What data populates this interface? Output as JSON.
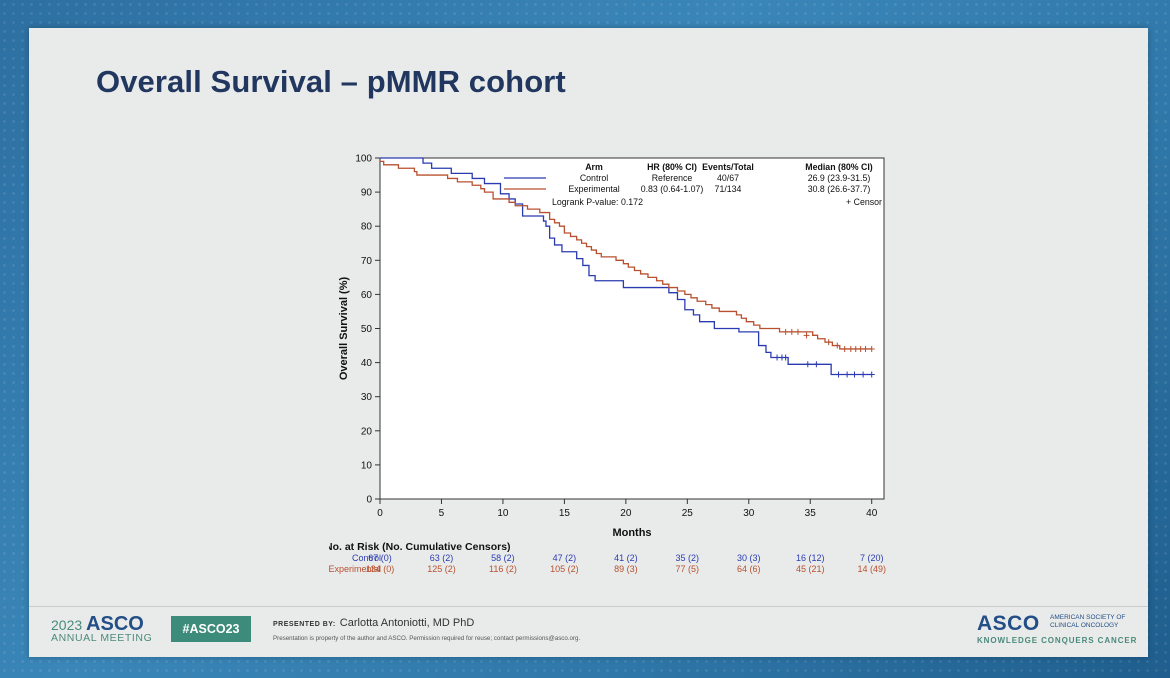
{
  "slide": {
    "title": "Overall Survival – pMMR cohort"
  },
  "footer": {
    "year": "2023",
    "brand": "ASCO",
    "meeting": "ANNUAL MEETING",
    "hashtag": "#ASCO23",
    "presented_label": "PRESENTED BY:",
    "presenter": "Carlotta Antoniotti, MD PhD",
    "disclaimer": "Presentation is property of the author and ASCO. Permission required for reuse; contact permissions@asco.org.",
    "logo": "ASCO",
    "society": "AMERICAN SOCIETY OF CLINICAL ONCOLOGY",
    "tagline": "KNOWLEDGE CONQUERS CANCER"
  },
  "chart_data": {
    "type": "line",
    "title": "",
    "xlabel": "Months",
    "ylabel": "Overall Survival (%)",
    "xlim": [
      0,
      41
    ],
    "ylim": [
      0,
      100
    ],
    "x_ticks": [
      0,
      5,
      10,
      15,
      20,
      25,
      30,
      35,
      40
    ],
    "y_ticks": [
      0,
      10,
      20,
      30,
      40,
      50,
      60,
      70,
      80,
      90,
      100
    ],
    "legend": {
      "headers": {
        "arm": "Arm",
        "hr": "HR (80% CI)",
        "events": "Events/Total",
        "median": "Median (80% CI)"
      },
      "rows": [
        {
          "arm": "Control",
          "hr": "Reference",
          "events": "40/67",
          "median": "26.9 (23.9-31.5)",
          "color": "#2a3bb0"
        },
        {
          "arm": "Experimental",
          "hr": "0.83 (0.64-1.07)",
          "events": "71/134",
          "median": "30.8 (26.6-37.7)",
          "color": "#b8502f"
        }
      ],
      "pvalue": "Logrank P-value: 0.172",
      "censor": "+  Censor"
    },
    "series": [
      {
        "name": "Control",
        "color": "#2a3bb0",
        "steps": [
          [
            0,
            100
          ],
          [
            3.5,
            98.5
          ],
          [
            4.2,
            97
          ],
          [
            5.8,
            95.5
          ],
          [
            7.5,
            94
          ],
          [
            8.5,
            92.5
          ],
          [
            9.8,
            89.5
          ],
          [
            10.5,
            88
          ],
          [
            11,
            86.5
          ],
          [
            11.6,
            83
          ],
          [
            13.3,
            81.5
          ],
          [
            13.5,
            80
          ],
          [
            13.8,
            76.5
          ],
          [
            14.2,
            74.5
          ],
          [
            14.8,
            72.5
          ],
          [
            16,
            70.5
          ],
          [
            16.5,
            68.5
          ],
          [
            17,
            65.5
          ],
          [
            17.5,
            64
          ],
          [
            19.8,
            62
          ],
          [
            23.5,
            60.5
          ],
          [
            24.2,
            58.5
          ],
          [
            24.8,
            55.5
          ],
          [
            25.5,
            54
          ],
          [
            26,
            52
          ],
          [
            27.2,
            50
          ],
          [
            29.2,
            49
          ],
          [
            30.8,
            45
          ],
          [
            31.4,
            43
          ],
          [
            31.8,
            41.5
          ],
          [
            33.2,
            39.5
          ],
          [
            36.7,
            36.5
          ],
          [
            40,
            36.5
          ]
        ],
        "censors": [
          [
            32.3,
            41.5
          ],
          [
            32.7,
            41.5
          ],
          [
            33,
            41.5
          ],
          [
            34.8,
            39.5
          ],
          [
            35.5,
            39.5
          ],
          [
            37.3,
            36.5
          ],
          [
            38,
            36.5
          ],
          [
            38.6,
            36.5
          ],
          [
            39.3,
            36.5
          ],
          [
            40,
            36.5
          ]
        ]
      },
      {
        "name": "Experimental",
        "color": "#b8502f",
        "steps": [
          [
            0,
            99
          ],
          [
            0.3,
            98
          ],
          [
            1.5,
            97
          ],
          [
            2.8,
            96
          ],
          [
            3,
            95
          ],
          [
            5.5,
            94
          ],
          [
            6.3,
            93
          ],
          [
            7.5,
            92
          ],
          [
            8.2,
            91
          ],
          [
            8.5,
            90
          ],
          [
            9.2,
            88
          ],
          [
            10.5,
            87
          ],
          [
            11,
            86
          ],
          [
            12,
            85
          ],
          [
            13,
            84
          ],
          [
            13.8,
            82
          ],
          [
            14.2,
            81
          ],
          [
            14.6,
            80
          ],
          [
            15,
            78
          ],
          [
            15.5,
            77
          ],
          [
            16,
            76
          ],
          [
            16.4,
            75
          ],
          [
            16.8,
            74
          ],
          [
            17.2,
            73
          ],
          [
            17.6,
            72
          ],
          [
            18,
            71
          ],
          [
            19.2,
            70
          ],
          [
            19.8,
            69
          ],
          [
            20.2,
            68
          ],
          [
            20.7,
            67
          ],
          [
            21.2,
            66
          ],
          [
            21.8,
            65
          ],
          [
            22.5,
            64
          ],
          [
            23,
            63
          ],
          [
            23.5,
            62
          ],
          [
            24.2,
            61
          ],
          [
            24.8,
            60
          ],
          [
            25.3,
            59
          ],
          [
            25.8,
            58
          ],
          [
            26.5,
            57
          ],
          [
            27,
            56
          ],
          [
            27.6,
            55
          ],
          [
            29,
            54
          ],
          [
            29.4,
            53
          ],
          [
            29.8,
            52
          ],
          [
            30.4,
            51
          ],
          [
            30.9,
            50
          ],
          [
            32.5,
            49
          ],
          [
            35.2,
            48
          ],
          [
            35.6,
            47
          ],
          [
            36.2,
            46
          ],
          [
            36.8,
            45
          ],
          [
            37.4,
            44
          ],
          [
            40,
            44
          ]
        ],
        "censors": [
          [
            33,
            49
          ],
          [
            33.5,
            49
          ],
          [
            34,
            49
          ],
          [
            34.7,
            48
          ],
          [
            36.5,
            46
          ],
          [
            37.2,
            45
          ],
          [
            37.8,
            44
          ],
          [
            38.3,
            44
          ],
          [
            38.7,
            44
          ],
          [
            39.1,
            44
          ],
          [
            39.5,
            44
          ],
          [
            40,
            44
          ]
        ]
      }
    ],
    "at_risk": {
      "title": "No. at Risk (No. Cumulative Censors)",
      "rows": [
        {
          "label": "Control",
          "color": "#2a3bb0",
          "values": [
            "67 (0)",
            "63 (2)",
            "58 (2)",
            "47 (2)",
            "41 (2)",
            "35 (2)",
            "30 (3)",
            "16 (12)",
            "7 (20)"
          ]
        },
        {
          "label": "Experimental",
          "color": "#b8502f",
          "values": [
            "134 (0)",
            "125 (2)",
            "116 (2)",
            "105 (2)",
            "89 (3)",
            "77 (5)",
            "64 (6)",
            "45 (21)",
            "14 (49)"
          ]
        }
      ]
    }
  }
}
